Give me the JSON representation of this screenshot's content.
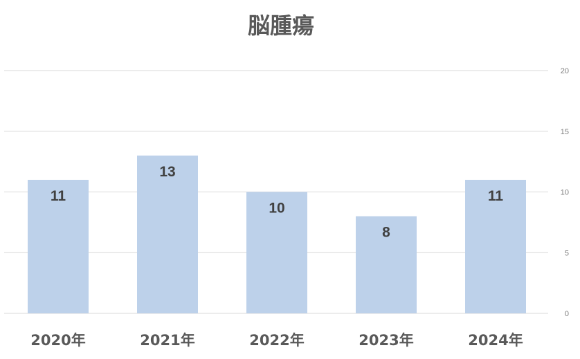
{
  "chart_data": {
    "type": "bar",
    "title": "脳腫瘍",
    "categories": [
      "2020年",
      "2021年",
      "2022年",
      "2023年",
      "2024年"
    ],
    "series": [
      {
        "values": [
          11,
          13,
          10,
          8,
          11
        ]
      }
    ],
    "ylim": [
      0,
      20
    ],
    "yticks": [
      0,
      5,
      10,
      15,
      20
    ],
    "y_axis_side": "right",
    "grid": true,
    "data_labels": "inside-top",
    "colors": {
      "bar": "#bdd1ea",
      "grid": "#d9d9d9",
      "title": "#595959",
      "tick": "#7f7f7f",
      "data_label": "#404040"
    }
  }
}
